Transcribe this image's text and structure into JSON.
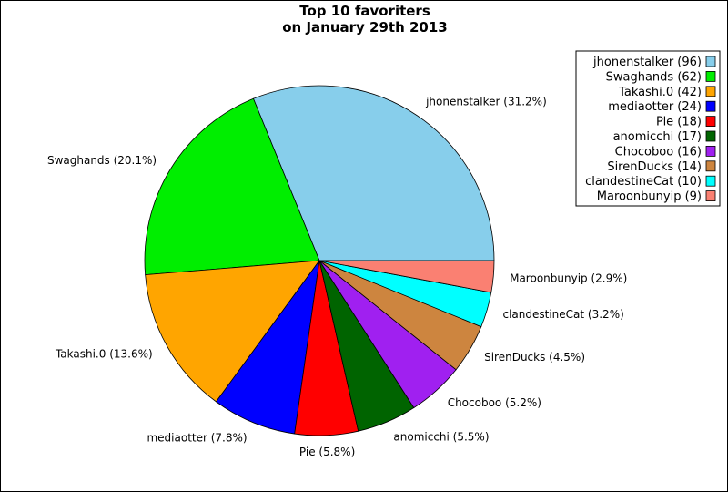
{
  "chart_data": {
    "type": "pie",
    "title": "Top 10 favoriters",
    "subtitle": "on January 29th 2013",
    "slices": [
      {
        "name": "jhonenstalker",
        "value": 96,
        "percent": "31.2%",
        "color": "#87ceeb"
      },
      {
        "name": "Swaghands",
        "value": 62,
        "percent": "20.1%",
        "color": "#00ee00"
      },
      {
        "name": "Takashi.0",
        "value": 42,
        "percent": "13.6%",
        "color": "#ffa500"
      },
      {
        "name": "mediaotter",
        "value": 24,
        "percent": "7.8%",
        "color": "#0000ff"
      },
      {
        "name": "Pie",
        "value": 18,
        "percent": "5.8%",
        "color": "#ff0000"
      },
      {
        "name": "anomicchi",
        "value": 17,
        "percent": "5.5%",
        "color": "#006400"
      },
      {
        "name": "Chocoboo",
        "value": 16,
        "percent": "5.2%",
        "color": "#a020f0"
      },
      {
        "name": "SirenDucks",
        "value": 14,
        "percent": "4.5%",
        "color": "#cd853f"
      },
      {
        "name": "clandestineCat",
        "value": 10,
        "percent": "3.2%",
        "color": "#00ffff"
      },
      {
        "name": "Maroonbunyip",
        "value": 9,
        "percent": "2.9%",
        "color": "#fa8072"
      }
    ],
    "legend_position": "top-right",
    "start_angle_deg": 0,
    "direction": "counterclockwise"
  }
}
